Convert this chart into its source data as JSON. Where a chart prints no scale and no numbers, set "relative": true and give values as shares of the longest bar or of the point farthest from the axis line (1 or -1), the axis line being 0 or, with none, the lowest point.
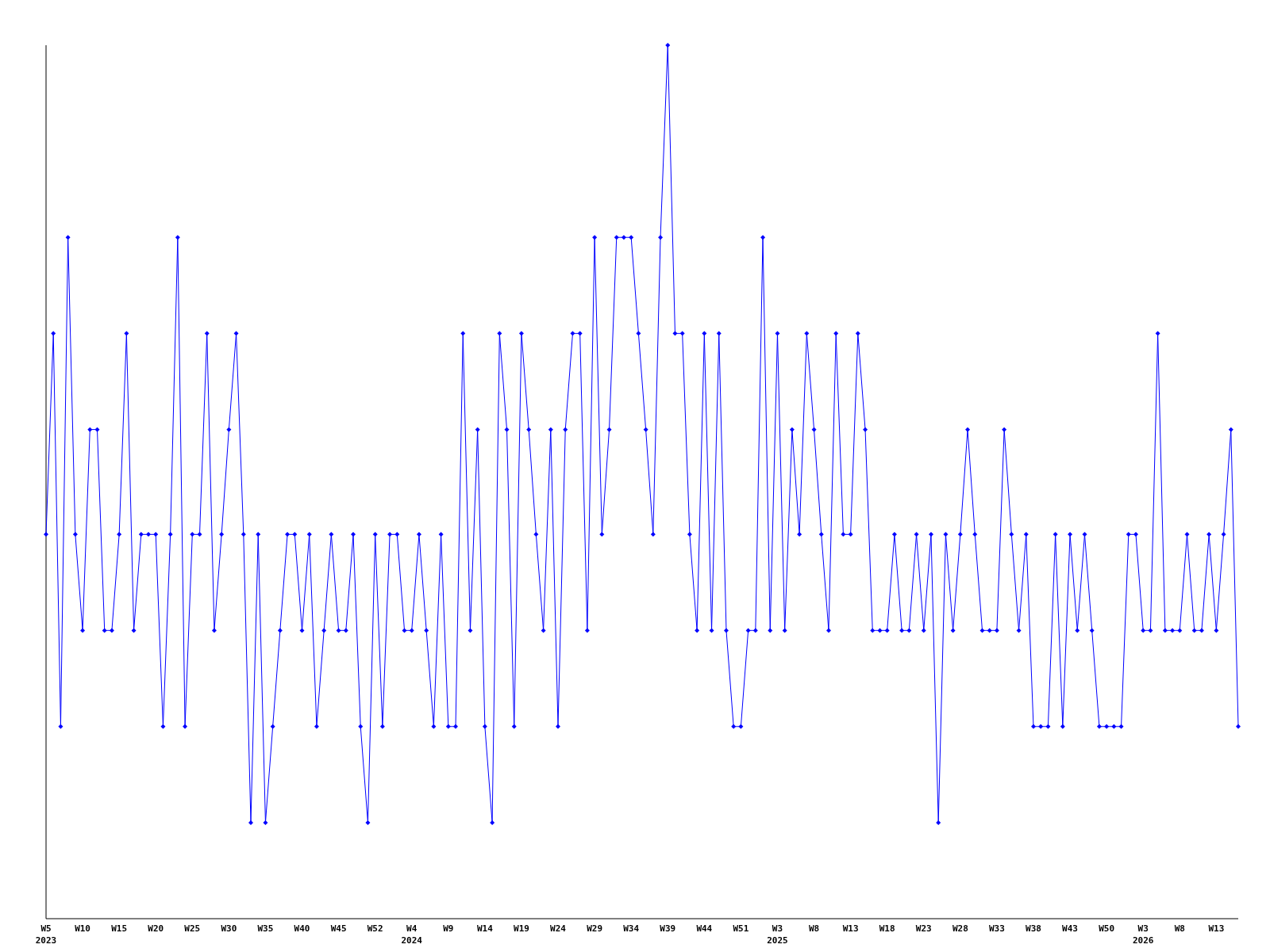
{
  "chart_data": {
    "type": "line",
    "relative": true,
    "marker": "diamond",
    "line_style": "solid",
    "grid": false,
    "legend": false,
    "categories": [
      "W5\n2023",
      null,
      null,
      null,
      null,
      "W10",
      null,
      null,
      null,
      null,
      "W15",
      null,
      null,
      null,
      null,
      "W20",
      null,
      null,
      null,
      null,
      "W25",
      null,
      null,
      null,
      null,
      "W30",
      null,
      null,
      null,
      null,
      "W35",
      null,
      null,
      null,
      null,
      "W40",
      null,
      null,
      null,
      null,
      "W45",
      null,
      null,
      null,
      null,
      "W52",
      null,
      null,
      null,
      null,
      "W4\n2024",
      null,
      null,
      null,
      null,
      "W9",
      null,
      null,
      null,
      null,
      "W14",
      null,
      null,
      null,
      null,
      "W19",
      null,
      null,
      null,
      null,
      "W24",
      null,
      null,
      null,
      null,
      "W29",
      null,
      null,
      null,
      null,
      "W34",
      null,
      null,
      null,
      null,
      "W39",
      null,
      null,
      null,
      null,
      "W44",
      null,
      null,
      null,
      null,
      "W51",
      null,
      null,
      null,
      null,
      "W3\n2025",
      null,
      null,
      null,
      null,
      "W8",
      null,
      null,
      null,
      null,
      "W13",
      null,
      null,
      null,
      null,
      "W18",
      null,
      null,
      null,
      null,
      "W23",
      null,
      null,
      null,
      null,
      "W28",
      null,
      null,
      null,
      null,
      "W33",
      null,
      null,
      null,
      null,
      "W38",
      null,
      null,
      null,
      null,
      "W43",
      null,
      null,
      null,
      null,
      "W50",
      null,
      null,
      null,
      null,
      "W3\n2026",
      null,
      null,
      null,
      null,
      "W8",
      null,
      null,
      null,
      null,
      "W13",
      null,
      null,
      null
    ],
    "series": [
      {
        "color": "#0000ff",
        "values": [
          0.44,
          0.67,
          0.22,
          0.78,
          0.44,
          0.33,
          0.56,
          0.56,
          0.33,
          0.33,
          0.44,
          0.67,
          0.33,
          0.44,
          0.44,
          0.44,
          0.22,
          0.44,
          0.78,
          0.22,
          0.44,
          0.44,
          0.67,
          0.33,
          0.44,
          0.56,
          0.67,
          0.44,
          0.11,
          0.44,
          0.11,
          0.22,
          0.33,
          0.44,
          0.44,
          0.33,
          0.44,
          0.22,
          0.33,
          0.44,
          0.33,
          0.33,
          0.44,
          0.22,
          0.11,
          0.44,
          0.22,
          0.44,
          0.44,
          0.33,
          0.33,
          0.44,
          0.33,
          0.22,
          0.44,
          0.22,
          0.22,
          0.67,
          0.33,
          0.56,
          0.22,
          0.11,
          0.67,
          0.56,
          0.22,
          0.67,
          0.56,
          0.44,
          0.33,
          0.56,
          0.22,
          0.56,
          0.67,
          0.67,
          0.33,
          0.78,
          0.44,
          0.56,
          0.78,
          0.78,
          0.78,
          0.67,
          0.56,
          0.44,
          0.78,
          1,
          0.67,
          0.67,
          0.44,
          0.33,
          0.67,
          0.33,
          0.67,
          0.33,
          0.22,
          0.22,
          0.33,
          0.33,
          0.78,
          0.33,
          0.67,
          0.33,
          0.56,
          0.44,
          0.67,
          0.56,
          0.44,
          0.33,
          0.67,
          0.44,
          0.44,
          0.67,
          0.56,
          0.33,
          0.33,
          0.33,
          0.44,
          0.33,
          0.33,
          0.44,
          0.33,
          0.44,
          0.11,
          0.44,
          0.33,
          0.44,
          0.56,
          0.44,
          0.33,
          0.33,
          0.33,
          0.56,
          0.44,
          0.33,
          0.44,
          0.22,
          0.22,
          0.22,
          0.44,
          0.22,
          0.44,
          0.33,
          0.44,
          0.33,
          0.22,
          0.22,
          0.22,
          0.22,
          0.44,
          0.44,
          0.33,
          0.33,
          0.67,
          0.33,
          0.33,
          0.33,
          0.44,
          0.33,
          0.33,
          0.44,
          0.33,
          0.44,
          0.56,
          0.22
        ]
      }
    ]
  }
}
